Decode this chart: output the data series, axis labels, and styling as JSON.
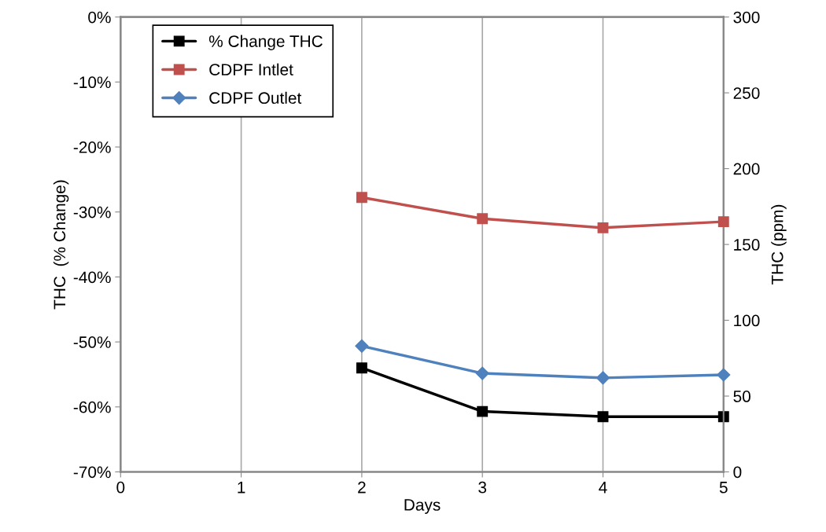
{
  "chart_data": {
    "type": "line",
    "xlabel": "Days",
    "ylabel": "THC  (% Change)",
    "y2label": "THC (ppm)",
    "x": [
      2,
      3,
      4,
      5
    ],
    "series": [
      {
        "name": "% Change THC",
        "color": "#000000",
        "marker": "square",
        "values": [
          -54,
          -60.7,
          -61.5,
          -61.5
        ]
      },
      {
        "name": "CDPF Intlet",
        "color": "#c0504d",
        "marker": "square",
        "axis": "y2",
        "values": [
          181,
          167,
          161,
          165
        ]
      },
      {
        "name": "CDPF Outlet",
        "color": "#4f81bd",
        "marker": "diamond",
        "axis": "y2",
        "values": [
          83,
          65,
          62,
          64
        ]
      }
    ],
    "xlim": [
      0,
      5
    ],
    "xticks": [
      0,
      1,
      2,
      3,
      4,
      5
    ],
    "ylim": [
      -70,
      0
    ],
    "yticks": [
      {
        "value": -70,
        "label": "-70%"
      },
      {
        "value": -60,
        "label": "-60%"
      },
      {
        "value": -50,
        "label": "-50%"
      },
      {
        "value": -40,
        "label": "-40%"
      },
      {
        "value": -30,
        "label": "-30%"
      },
      {
        "value": -20,
        "label": "-20%"
      },
      {
        "value": -10,
        "label": "-10%"
      },
      {
        "value": 0,
        "label": "0%"
      }
    ],
    "y2lim": [
      0,
      300
    ],
    "y2ticks": [
      0,
      50,
      100,
      150,
      200,
      250,
      300
    ],
    "grid": "x",
    "legend": "top left",
    "line_style": "solid"
  }
}
